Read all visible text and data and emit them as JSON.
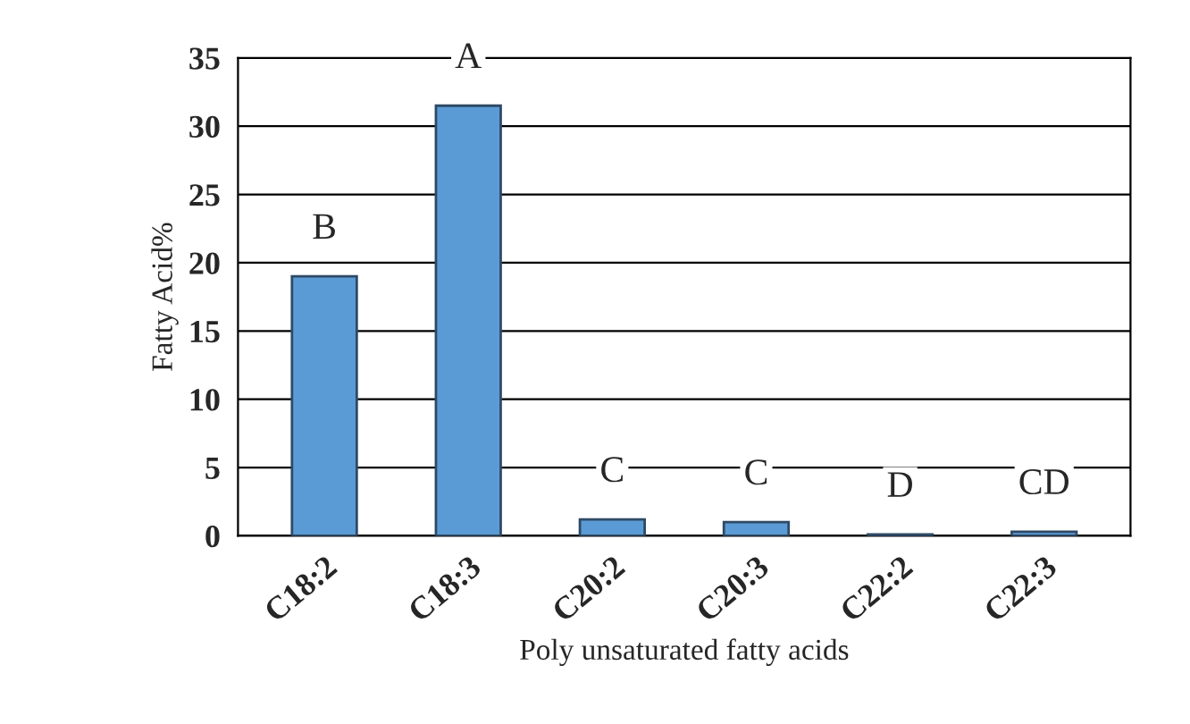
{
  "chart_data": {
    "type": "bar",
    "categories": [
      "C18:2",
      "C18:3",
      "C20:2",
      "C20:3",
      "C22:2",
      "C22:3"
    ],
    "values": [
      19,
      31.5,
      1.2,
      1.0,
      0.1,
      0.3
    ],
    "color": "#5b9bd5",
    "ylim": [
      0,
      35
    ],
    "yticks": [
      0,
      5,
      10,
      15,
      20,
      25,
      30,
      35
    ],
    "grid": "y",
    "xlabel": "Poly unsaturated fatty acids",
    "ylabel": "Fatty Acid%",
    "annotations": [
      {
        "text": "B",
        "x": "C18:2",
        "y": 19
      },
      {
        "text": "A",
        "x": "C18:3",
        "y": 31.5
      },
      {
        "text": "C",
        "x": "C20:2",
        "y": 1.2
      },
      {
        "text": "C",
        "x": "C20:3",
        "y": 1.0
      },
      {
        "text": "D",
        "x": "C22:2",
        "y": 0.1
      },
      {
        "text": "CD",
        "x": "C22:3",
        "y": 0.3
      }
    ]
  }
}
